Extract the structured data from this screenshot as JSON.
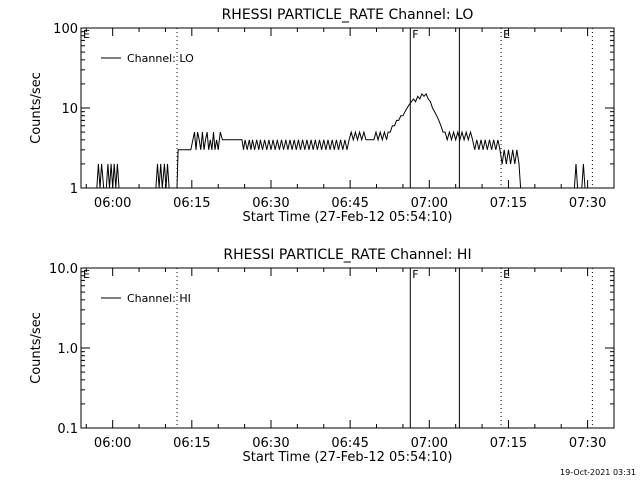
{
  "footer": {
    "timestamp": "19-Oct-2021 03:31"
  },
  "chart_data": [
    {
      "type": "line",
      "title": "RHESSI PARTICLE_RATE Channel: LO",
      "xlabel": "Start Time (27-Feb-12 05:54:10)",
      "ylabel": "Counts/sec",
      "yscale": "log",
      "ylim": [
        1,
        100
      ],
      "xlim_minutes_after_0554": [
        0,
        101
      ],
      "yticks": [
        {
          "v": 1,
          "label": "1"
        },
        {
          "v": 10,
          "label": "10"
        },
        {
          "v": 100,
          "label": "100"
        }
      ],
      "xticks": [
        {
          "m": 6,
          "label": "06:00"
        },
        {
          "m": 21,
          "label": "06:15"
        },
        {
          "m": 36,
          "label": "06:30"
        },
        {
          "m": 51,
          "label": "06:45"
        },
        {
          "m": 66,
          "label": "07:00"
        },
        {
          "m": 81,
          "label": "07:15"
        },
        {
          "m": 96,
          "label": "07:30"
        }
      ],
      "legend": {
        "label": "Channel: LO",
        "position": "top-left"
      },
      "markers": [
        {
          "label": "E",
          "m": 0,
          "style": "dotted"
        },
        {
          "label": "",
          "m": 18.2,
          "style": "dotted"
        },
        {
          "label": "F",
          "m": 62.4,
          "style": "solid"
        },
        {
          "label": "",
          "m": 71.7,
          "style": "solid"
        },
        {
          "label": "E",
          "m": 79.6,
          "style": "dotted"
        },
        {
          "label": "",
          "m": 96.9,
          "style": "dotted"
        }
      ],
      "series": [
        {
          "segments": [
            [
              [
                3,
                1
              ],
              [
                3.3,
                2
              ],
              [
                3.6,
                1
              ],
              [
                3.9,
                2
              ],
              [
                4.3,
                1
              ],
              [
                4.8,
                1
              ],
              [
                5.1,
                2
              ],
              [
                5.4,
                1
              ],
              [
                5.7,
                2
              ],
              [
                6,
                1
              ],
              [
                6.3,
                2
              ],
              [
                6.6,
                1
              ],
              [
                6.9,
                2
              ],
              [
                7.2,
                1
              ]
            ],
            [
              [
                14.2,
                1
              ],
              [
                14.5,
                2
              ],
              [
                14.8,
                1
              ],
              [
                15.1,
                2
              ],
              [
                15.4,
                1
              ],
              [
                15.8,
                2
              ],
              [
                16.1,
                1
              ],
              [
                16.4,
                2
              ],
              [
                16.7,
                1
              ]
            ],
            [
              [
                18.2,
                1
              ],
              [
                18.4,
                3
              ],
              [
                20.8,
                3
              ],
              [
                21.2,
                4
              ],
              [
                21.5,
                5
              ],
              [
                21.8,
                3
              ],
              [
                22.1,
                5
              ],
              [
                22.4,
                4
              ],
              [
                22.7,
                3
              ],
              [
                23,
                5
              ],
              [
                23.3,
                3
              ],
              [
                23.6,
                4
              ],
              [
                23.9,
                5
              ],
              [
                24.2,
                3
              ],
              [
                24.5,
                4
              ],
              [
                24.8,
                3
              ],
              [
                25.1,
                5
              ],
              [
                25.4,
                3
              ],
              [
                25.7,
                4
              ],
              [
                26,
                3
              ],
              [
                26.4,
                5
              ],
              [
                26.8,
                4
              ],
              [
                30.5,
                4
              ],
              [
                30.8,
                3
              ],
              [
                31.1,
                4
              ],
              [
                31.5,
                3
              ],
              [
                31.9,
                4
              ],
              [
                32.2,
                3
              ],
              [
                32.5,
                4
              ],
              [
                32.9,
                3
              ],
              [
                33.3,
                4
              ],
              [
                33.7,
                3
              ],
              [
                34,
                4
              ],
              [
                34.4,
                3
              ],
              [
                34.8,
                4
              ],
              [
                35.2,
                3
              ],
              [
                35.6,
                4
              ],
              [
                36,
                3
              ],
              [
                36.4,
                4
              ],
              [
                36.8,
                3
              ],
              [
                37.2,
                4
              ],
              [
                37.6,
                3
              ],
              [
                38,
                4
              ],
              [
                38.4,
                3
              ],
              [
                38.8,
                4
              ],
              [
                39.2,
                3
              ],
              [
                39.6,
                4
              ],
              [
                40,
                3
              ],
              [
                40.4,
                4
              ],
              [
                40.8,
                3
              ],
              [
                41.2,
                4
              ],
              [
                41.6,
                3
              ],
              [
                42,
                4
              ],
              [
                42.4,
                3
              ],
              [
                42.8,
                4
              ],
              [
                43.2,
                3
              ],
              [
                43.6,
                4
              ],
              [
                44,
                3
              ],
              [
                44.4,
                4
              ],
              [
                44.8,
                3
              ],
              [
                45.2,
                4
              ],
              [
                45.6,
                3
              ],
              [
                46,
                4
              ],
              [
                46.4,
                3
              ],
              [
                46.8,
                4
              ],
              [
                47.2,
                3
              ],
              [
                47.6,
                4
              ],
              [
                48,
                3
              ],
              [
                48.4,
                4
              ],
              [
                48.8,
                3
              ],
              [
                49.2,
                4
              ],
              [
                49.6,
                3
              ],
              [
                50,
                4
              ],
              [
                50.4,
                3
              ],
              [
                50.8,
                4
              ],
              [
                51.2,
                5
              ],
              [
                51.6,
                4
              ],
              [
                52,
                5
              ],
              [
                52.4,
                4
              ],
              [
                52.8,
                5
              ],
              [
                53.2,
                4
              ],
              [
                53.6,
                5
              ],
              [
                54,
                4
              ],
              [
                55.5,
                4
              ],
              [
                55.9,
                5
              ],
              [
                56.3,
                4
              ],
              [
                56.7,
                5
              ],
              [
                57.1,
                4
              ],
              [
                57.5,
                5
              ],
              [
                57.9,
                4
              ],
              [
                58.2,
                5
              ],
              [
                58.6,
                5
              ],
              [
                59,
                6
              ],
              [
                59.4,
                6
              ],
              [
                59.8,
                7
              ],
              [
                60.2,
                7
              ],
              [
                60.6,
                8
              ],
              [
                61,
                8
              ],
              [
                61.4,
                9
              ],
              [
                61.8,
                10
              ],
              [
                62.2,
                11
              ],
              [
                62.6,
                12
              ],
              [
                63,
                13
              ],
              [
                63.4,
                12
              ],
              [
                63.8,
                14
              ],
              [
                64.2,
                13
              ],
              [
                64.6,
                15
              ],
              [
                65,
                14
              ],
              [
                65.4,
                15
              ],
              [
                65.8,
                13
              ],
              [
                66.2,
                12
              ],
              [
                66.6,
                10
              ],
              [
                67,
                9
              ],
              [
                67.4,
                8
              ],
              [
                67.8,
                7
              ],
              [
                68.2,
                6
              ],
              [
                68.6,
                5
              ],
              [
                69,
                5
              ],
              [
                69.4,
                4
              ],
              [
                69.8,
                5
              ],
              [
                70.2,
                4
              ],
              [
                70.6,
                5
              ],
              [
                71,
                4
              ],
              [
                71.4,
                5
              ],
              [
                71.8,
                4
              ],
              [
                72.2,
                5
              ],
              [
                72.6,
                4
              ],
              [
                73,
                5
              ],
              [
                73.4,
                4
              ],
              [
                73.8,
                5
              ],
              [
                74.2,
                4
              ],
              [
                74.6,
                3
              ],
              [
                75,
                4
              ],
              [
                75.4,
                3
              ],
              [
                75.8,
                4
              ],
              [
                76.2,
                3
              ],
              [
                76.6,
                4
              ],
              [
                77,
                3
              ],
              [
                77.4,
                4
              ],
              [
                77.8,
                3
              ],
              [
                78.2,
                4
              ],
              [
                78.6,
                3
              ],
              [
                79,
                4
              ],
              [
                79.4,
                3
              ],
              [
                79.8,
                2
              ],
              [
                80.2,
                3
              ],
              [
                80.6,
                2
              ],
              [
                81,
                3
              ],
              [
                81.4,
                2
              ],
              [
                81.8,
                3
              ],
              [
                82.2,
                2
              ],
              [
                82.6,
                3
              ],
              [
                83,
                2
              ],
              [
                83.3,
                1
              ]
            ],
            [
              [
                93.5,
                1
              ],
              [
                93.8,
                2
              ],
              [
                94.1,
                1
              ],
              [
                94.9,
                1
              ],
              [
                95.2,
                2
              ],
              [
                95.5,
                1
              ]
            ]
          ]
        }
      ]
    },
    {
      "type": "line",
      "title": "RHESSI PARTICLE_RATE Channel: HI",
      "xlabel": "Start Time (27-Feb-12 05:54:10)",
      "ylabel": "Counts/sec",
      "yscale": "log",
      "ylim": [
        0.1,
        10
      ],
      "xlim_minutes_after_0554": [
        0,
        101
      ],
      "yticks": [
        {
          "v": 0.1,
          "label": "0.1"
        },
        {
          "v": 1,
          "label": "1.0"
        },
        {
          "v": 10,
          "label": "10.0"
        }
      ],
      "xticks": [
        {
          "m": 6,
          "label": "06:00"
        },
        {
          "m": 21,
          "label": "06:15"
        },
        {
          "m": 36,
          "label": "06:30"
        },
        {
          "m": 51,
          "label": "06:45"
        },
        {
          "m": 66,
          "label": "07:00"
        },
        {
          "m": 81,
          "label": "07:15"
        },
        {
          "m": 96,
          "label": "07:30"
        }
      ],
      "legend": {
        "label": "Channel: HI",
        "position": "top-left"
      },
      "markers": [
        {
          "label": "E",
          "m": 0,
          "style": "dotted"
        },
        {
          "label": "",
          "m": 18.2,
          "style": "dotted"
        },
        {
          "label": "F",
          "m": 62.4,
          "style": "solid"
        },
        {
          "label": "",
          "m": 71.7,
          "style": "solid"
        },
        {
          "label": "E",
          "m": 79.6,
          "style": "dotted"
        },
        {
          "label": "",
          "m": 96.9,
          "style": "dotted"
        }
      ],
      "series": [
        {
          "segments": []
        }
      ]
    }
  ]
}
